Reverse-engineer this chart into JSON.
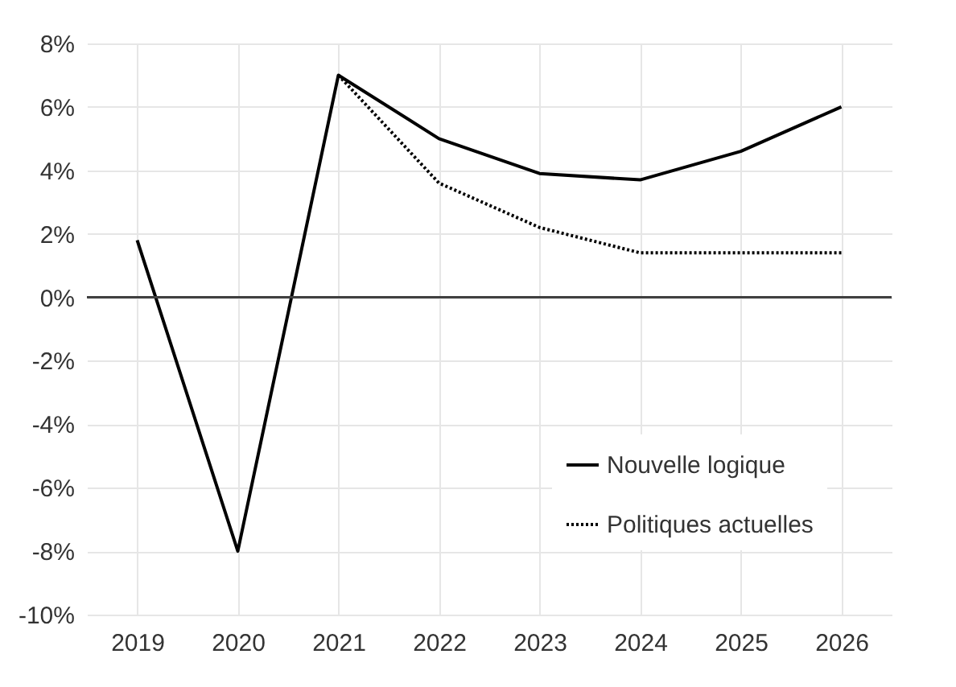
{
  "chart_data": {
    "type": "line",
    "categories": [
      "2019",
      "2020",
      "2021",
      "2022",
      "2023",
      "2024",
      "2025",
      "2026"
    ],
    "series": [
      {
        "name": "Nouvelle logique",
        "color": "#000000",
        "line_style": "solid",
        "values": [
          1.8,
          -8,
          7,
          5,
          3.9,
          3.7,
          4.6,
          6
        ]
      },
      {
        "name": "Politiques actuelles",
        "color": "#000000",
        "line_style": "dotted",
        "values": [
          null,
          null,
          7,
          3.6,
          2.2,
          1.4,
          1.4,
          1.4
        ]
      }
    ],
    "ylim": [
      -10,
      8
    ],
    "yticks": [
      {
        "value": -10,
        "label": "-10%"
      },
      {
        "value": -8,
        "label": "-8%"
      },
      {
        "value": -6,
        "label": "-6%"
      },
      {
        "value": -4,
        "label": "-4%"
      },
      {
        "value": -2,
        "label": "-2%"
      },
      {
        "value": 0,
        "label": "0%"
      },
      {
        "value": 2,
        "label": "2%"
      },
      {
        "value": 4,
        "label": "4%"
      },
      {
        "value": 6,
        "label": "6%"
      },
      {
        "value": 8,
        "label": "8%"
      }
    ],
    "ref_lines": [
      {
        "axis": "y",
        "value": 0,
        "color": "#404040"
      }
    ],
    "grid": true,
    "legend": "bottom right",
    "marker": "none"
  }
}
